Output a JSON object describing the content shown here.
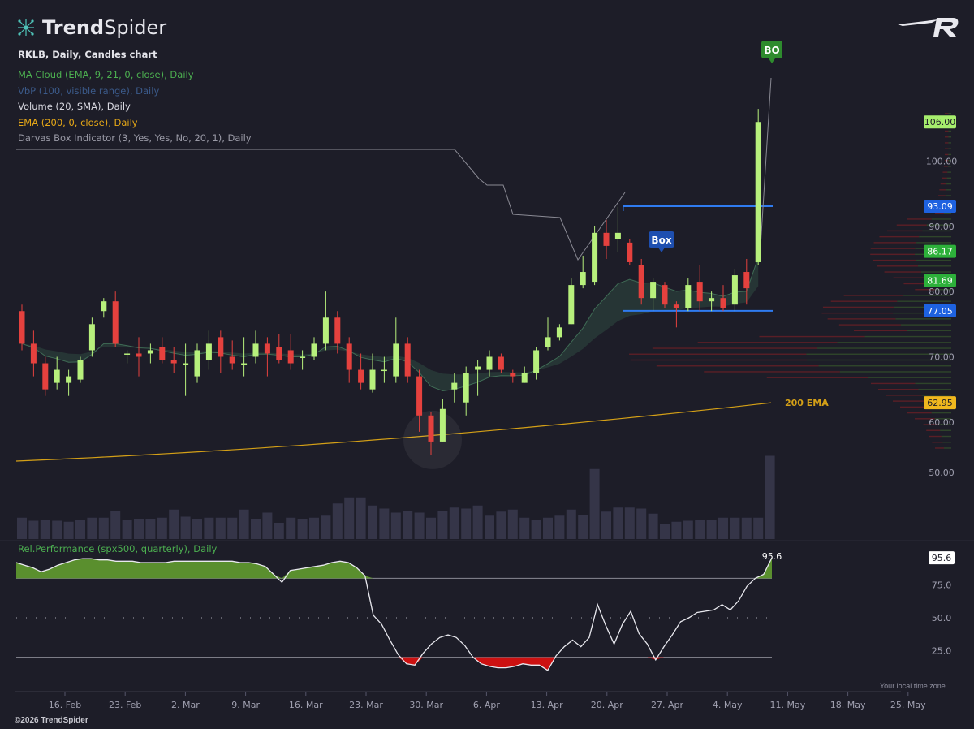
{
  "brand": {
    "name_bold": "Trend",
    "name_light": "Spider",
    "copyright": "©2026 TrendSpider"
  },
  "header": {
    "title": "RKLB, Daily, Candles chart",
    "indicators": [
      {
        "label": "MA Cloud (EMA, 9, 21, 0, close), Daily",
        "color": "#4caf50"
      },
      {
        "label": "VbP (100, visible range), Daily",
        "color": "#3b5a8a"
      },
      {
        "label": "Volume (20, SMA), Daily",
        "color": "#d8d8e0"
      },
      {
        "label": "EMA (200, 0, close), Daily",
        "color": "#e6a817"
      },
      {
        "label": "Darvas Box Indicator (3, Yes, Yes, No, 20, 1), Daily",
        "color": "#9a9aa6"
      }
    ]
  },
  "local_time_label": "Your local time zone",
  "colors": {
    "up": "#b7f07c",
    "down": "#e5413e",
    "ema200": "#d4a017",
    "box": "#2f7bf0",
    "background": "#1d1d28",
    "rp_green": "#5a8f2e",
    "rp_red": "#cc1111"
  },
  "chart_data": [
    {
      "type": "candlestick",
      "title": "RKLB, Daily, Candles chart",
      "x_ticks": [
        "16. Feb",
        "23. Feb",
        "2. Mar",
        "9. Mar",
        "16. Mar",
        "23. Mar",
        "30. Mar",
        "6. Apr",
        "13. Apr",
        "20. Apr",
        "27. Apr",
        "4. May",
        "11. May",
        "18. May",
        "25. May"
      ],
      "y_ticks": [
        60,
        70,
        80,
        90,
        100
      ],
      "ylim": [
        55,
        113
      ],
      "candles": [
        {
          "o": 77.0,
          "c": 72.0,
          "h": 78.0,
          "l": 71.0
        },
        {
          "o": 72.0,
          "c": 69.0,
          "h": 74.0,
          "l": 67.0
        },
        {
          "o": 69.0,
          "c": 65.0,
          "h": 70.0,
          "l": 64.0
        },
        {
          "o": 66.0,
          "c": 68.0,
          "h": 70.0,
          "l": 65.0
        },
        {
          "o": 66.0,
          "c": 67.0,
          "h": 68.0,
          "l": 64.0
        },
        {
          "o": 66.5,
          "c": 69.5,
          "h": 70.0,
          "l": 66.0
        },
        {
          "o": 71.0,
          "c": 75.0,
          "h": 76.0,
          "l": 70.0
        },
        {
          "o": 77.0,
          "c": 78.5,
          "h": 79.0,
          "l": 76.0
        },
        {
          "o": 78.5,
          "c": 72.0,
          "h": 80.0,
          "l": 71.5
        },
        {
          "o": 70.5,
          "c": 70.5,
          "h": 71.0,
          "l": 69.0
        },
        {
          "o": 70.5,
          "c": 70.0,
          "h": 73.0,
          "l": 67.0
        },
        {
          "o": 70.5,
          "c": 71.0,
          "h": 72.0,
          "l": 69.0
        },
        {
          "o": 71.5,
          "c": 69.5,
          "h": 73.0,
          "l": 69.0
        },
        {
          "o": 69.5,
          "c": 69.0,
          "h": 71.5,
          "l": 67.5
        },
        {
          "o": 69.0,
          "c": 69.0,
          "h": 72.0,
          "l": 64.0
        },
        {
          "o": 67.0,
          "c": 71.0,
          "h": 72.0,
          "l": 66.0
        },
        {
          "o": 69.5,
          "c": 72.0,
          "h": 74.0,
          "l": 68.0
        },
        {
          "o": 73.0,
          "c": 70.0,
          "h": 74.0,
          "l": 67.5
        },
        {
          "o": 70.0,
          "c": 69.0,
          "h": 72.5,
          "l": 68.0
        },
        {
          "o": 69.0,
          "c": 69.0,
          "h": 73.0,
          "l": 67.0
        },
        {
          "o": 70.0,
          "c": 72.0,
          "h": 74.0,
          "l": 69.0
        },
        {
          "o": 72.0,
          "c": 70.5,
          "h": 73.0,
          "l": 67.0
        },
        {
          "o": 71.5,
          "c": 69.5,
          "h": 73.5,
          "l": 69.0
        },
        {
          "o": 71.0,
          "c": 69.0,
          "h": 73.5,
          "l": 68.0
        },
        {
          "o": 70.0,
          "c": 70.0,
          "h": 71.0,
          "l": 68.0
        },
        {
          "o": 70.0,
          "c": 72.0,
          "h": 73.0,
          "l": 69.5
        },
        {
          "o": 72.0,
          "c": 76.0,
          "h": 80.0,
          "l": 71.0
        },
        {
          "o": 76.0,
          "c": 72.0,
          "h": 77.0,
          "l": 70.5
        },
        {
          "o": 72.0,
          "c": 68.0,
          "h": 73.0,
          "l": 66.0
        },
        {
          "o": 68.0,
          "c": 66.0,
          "h": 70.5,
          "l": 65.0
        },
        {
          "o": 65.0,
          "c": 68.0,
          "h": 70.5,
          "l": 64.5
        },
        {
          "o": 68.0,
          "c": 68.0,
          "h": 70.0,
          "l": 66.0
        },
        {
          "o": 67.0,
          "c": 72.0,
          "h": 76.0,
          "l": 66.0
        },
        {
          "o": 72.0,
          "c": 67.0,
          "h": 73.0,
          "l": 66.0
        },
        {
          "o": 67.0,
          "c": 61.0,
          "h": 68.0,
          "l": 58.5
        },
        {
          "o": 61.0,
          "c": 57.0,
          "h": 61.5,
          "l": 55.0
        },
        {
          "o": 57.0,
          "c": 62.0,
          "h": 63.5,
          "l": 57.0
        },
        {
          "o": 65.0,
          "c": 66.0,
          "h": 67.5,
          "l": 63.0
        },
        {
          "o": 63.0,
          "c": 67.5,
          "h": 68.5,
          "l": 61.0
        },
        {
          "o": 68.0,
          "c": 68.5,
          "h": 69.5,
          "l": 64.0
        },
        {
          "o": 68.0,
          "c": 70.0,
          "h": 71.0,
          "l": 67.0
        },
        {
          "o": 70.0,
          "c": 68.0,
          "h": 70.5,
          "l": 67.5
        },
        {
          "o": 67.5,
          "c": 67.0,
          "h": 68.0,
          "l": 66.0
        },
        {
          "o": 66.0,
          "c": 67.5,
          "h": 68.5,
          "l": 66.0
        },
        {
          "o": 67.5,
          "c": 71.0,
          "h": 71.5,
          "l": 66.5
        },
        {
          "o": 71.5,
          "c": 73.0,
          "h": 76.0,
          "l": 71.0
        },
        {
          "o": 73.0,
          "c": 74.5,
          "h": 75.0,
          "l": 72.5
        },
        {
          "o": 75.0,
          "c": 81.0,
          "h": 82.0,
          "l": 75.0
        },
        {
          "o": 81.0,
          "c": 83.0,
          "h": 85.5,
          "l": 80.5
        },
        {
          "o": 81.5,
          "c": 89.0,
          "h": 90.0,
          "l": 81.0
        },
        {
          "o": 89.0,
          "c": 87.0,
          "h": 91.0,
          "l": 85.0
        },
        {
          "o": 88.0,
          "c": 89.0,
          "h": 93.0,
          "l": 86.0
        },
        {
          "o": 87.5,
          "c": 84.5,
          "h": 88.0,
          "l": 84.0
        },
        {
          "o": 84.0,
          "c": 79.0,
          "h": 85.0,
          "l": 78.0
        },
        {
          "o": 79.0,
          "c": 81.5,
          "h": 82.0,
          "l": 77.0
        },
        {
          "o": 81.0,
          "c": 78.0,
          "h": 81.5,
          "l": 77.5
        },
        {
          "o": 78.0,
          "c": 77.5,
          "h": 78.5,
          "l": 74.5
        },
        {
          "o": 77.5,
          "c": 81.0,
          "h": 82.0,
          "l": 77.0
        },
        {
          "o": 81.5,
          "c": 78.5,
          "h": 84.0,
          "l": 77.0
        },
        {
          "o": 78.5,
          "c": 79.0,
          "h": 80.0,
          "l": 77.0
        },
        {
          "o": 79.0,
          "c": 77.5,
          "h": 81.0,
          "l": 77.0
        },
        {
          "o": 78.0,
          "c": 82.5,
          "h": 83.5,
          "l": 77.0
        },
        {
          "o": 83.0,
          "c": 80.5,
          "h": 85.0,
          "l": 78.0
        },
        {
          "o": 84.5,
          "c": 106.0,
          "h": 108.0,
          "l": 84.0
        }
      ],
      "volume": [
        1.05,
        0.9,
        0.95,
        0.9,
        0.85,
        0.95,
        1.05,
        1.05,
        1.4,
        0.95,
        1.0,
        1.0,
        1.05,
        1.45,
        1.1,
        1.0,
        1.05,
        1.05,
        1.05,
        1.45,
        1.0,
        1.3,
        0.8,
        1.05,
        1.0,
        1.05,
        1.15,
        1.75,
        2.05,
        2.05,
        1.65,
        1.5,
        1.3,
        1.4,
        1.3,
        1.05,
        1.4,
        1.55,
        1.5,
        1.65,
        1.15,
        1.35,
        1.45,
        1.05,
        0.95,
        1.05,
        1.15,
        1.45,
        1.2,
        3.45,
        1.35,
        1.55,
        1.55,
        1.5,
        1.25,
        0.75,
        0.85,
        0.9,
        0.95,
        0.95,
        1.05,
        1.05,
        1.05,
        1.05,
        4.1
      ],
      "ema200": {
        "start": 54.0,
        "end": 62.95,
        "label": "200 EMA",
        "last_label": "62.95"
      },
      "darvas_box": {
        "top": 93.09,
        "bottom": 77.05,
        "top_label": "93.09",
        "bottom_label": "77.05",
        "box_marker": "Box",
        "breakout_marker": "BO"
      },
      "price_labels": [
        {
          "value": 106.0,
          "text": "106.00",
          "style": "up"
        },
        {
          "value": 86.17,
          "text": "86.17",
          "style": "green"
        },
        {
          "value": 81.69,
          "text": "81.69",
          "style": "green"
        }
      ]
    },
    {
      "type": "line",
      "title": "Rel.Performance (spx500, quarterly), Daily",
      "ylim": [
        0,
        100
      ],
      "y_ticks": [
        25,
        50,
        75
      ],
      "upper_band": 80,
      "lower_band": 20,
      "last_value": 95.6,
      "last_label": "95.6",
      "values": [
        92,
        90,
        88,
        85,
        87,
        90,
        92,
        94,
        95,
        95,
        94,
        94,
        93,
        93,
        93,
        92,
        92,
        92,
        92,
        93,
        93,
        93,
        93,
        93,
        93,
        93,
        93,
        92,
        92,
        91,
        89,
        83,
        77,
        86,
        87,
        88,
        89,
        90,
        92,
        93,
        92,
        88,
        82,
        52,
        45,
        33,
        22,
        15,
        14,
        23,
        30,
        35,
        37,
        35,
        29,
        20,
        15,
        13,
        12,
        12,
        13,
        15,
        14,
        14,
        10,
        21,
        28,
        33,
        28,
        35,
        60,
        44,
        30,
        45,
        55,
        38,
        30,
        18,
        28,
        37,
        47,
        50,
        54,
        55,
        56,
        60,
        56,
        63,
        74,
        80,
        83,
        95.6
      ]
    }
  ]
}
